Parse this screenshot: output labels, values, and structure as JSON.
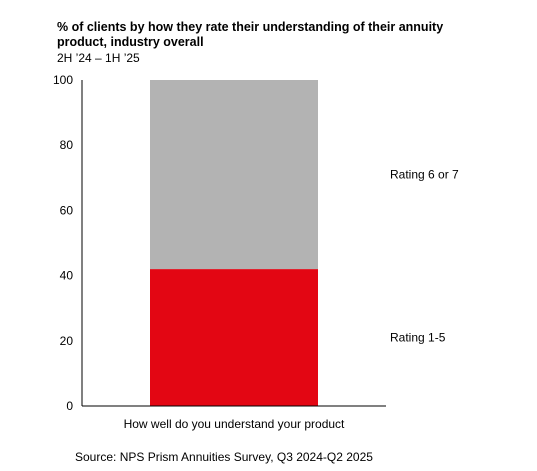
{
  "chart_data": {
    "type": "bar",
    "stacked": true,
    "title": "% of clients by how they rate their understanding of their annuity product, industry overall",
    "subtitle": "2H ’24 – 1H ’25",
    "categories": [
      "How well do you understand your product"
    ],
    "series": [
      {
        "name": "Rating 1-5",
        "values": [
          42
        ],
        "color": "#e30613"
      },
      {
        "name": "Rating 6 or 7",
        "values": [
          58
        ],
        "color": "#b3b3b3"
      }
    ],
    "ylim": [
      0,
      100
    ],
    "yticks": [
      0,
      20,
      40,
      60,
      80,
      100
    ],
    "grid": false,
    "legend": "right, inline labels beside segments",
    "source": "Source: NPS Prism Annuities Survey, Q3 2024-Q2 2025"
  }
}
